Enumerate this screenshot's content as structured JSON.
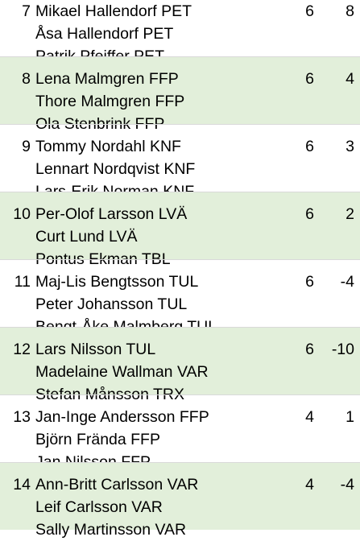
{
  "rows": [
    {
      "rank": "7",
      "players": [
        "Mikael Hallendorf PET",
        "Åsa Hallendorf PET",
        "Patrik Pfeiffer PET"
      ],
      "col1": "6",
      "col2": "8",
      "shaded": false
    },
    {
      "rank": "8",
      "players": [
        "Lena Malmgren FFP",
        "Thore Malmgren FFP",
        "Ola Stenbrink FFP"
      ],
      "col1": "6",
      "col2": "4",
      "shaded": true
    },
    {
      "rank": "9",
      "players": [
        "Tommy Nordahl KNF",
        "Lennart Nordqvist KNF",
        "Lars-Erik Norman KNF"
      ],
      "col1": "6",
      "col2": "3",
      "shaded": false
    },
    {
      "rank": "10",
      "players": [
        "Per-Olof Larsson LVÄ",
        "Curt Lund LVÄ",
        "Pontus Ekman TBL"
      ],
      "col1": "6",
      "col2": "2",
      "shaded": true
    },
    {
      "rank": "11",
      "players": [
        "Maj-Lis Bengtsson TUL",
        "Peter Johansson TUL",
        "Bengt-Åke Malmberg TUL"
      ],
      "col1": "6",
      "col2": "-4",
      "shaded": false
    },
    {
      "rank": "12",
      "players": [
        "Lars Nilsson TUL",
        "Madelaine Wallman VAR",
        "Stefan Månsson TRX"
      ],
      "col1": "6",
      "col2": "-10",
      "shaded": true
    },
    {
      "rank": "13",
      "players": [
        "Jan-Inge Andersson FFP",
        "Björn Frända FFP",
        "Jan Nilsson FFP"
      ],
      "col1": "4",
      "col2": "1",
      "shaded": false
    },
    {
      "rank": "14",
      "players": [
        "Ann-Britt Carlsson VAR",
        "Leif Carlsson VAR",
        "Sally Martinsson VAR"
      ],
      "col1": "4",
      "col2": "-4",
      "shaded": true
    }
  ],
  "colors": {
    "shaded_row": "#e2efda",
    "row": "#ffffff",
    "separator": "#d9d9d9"
  }
}
